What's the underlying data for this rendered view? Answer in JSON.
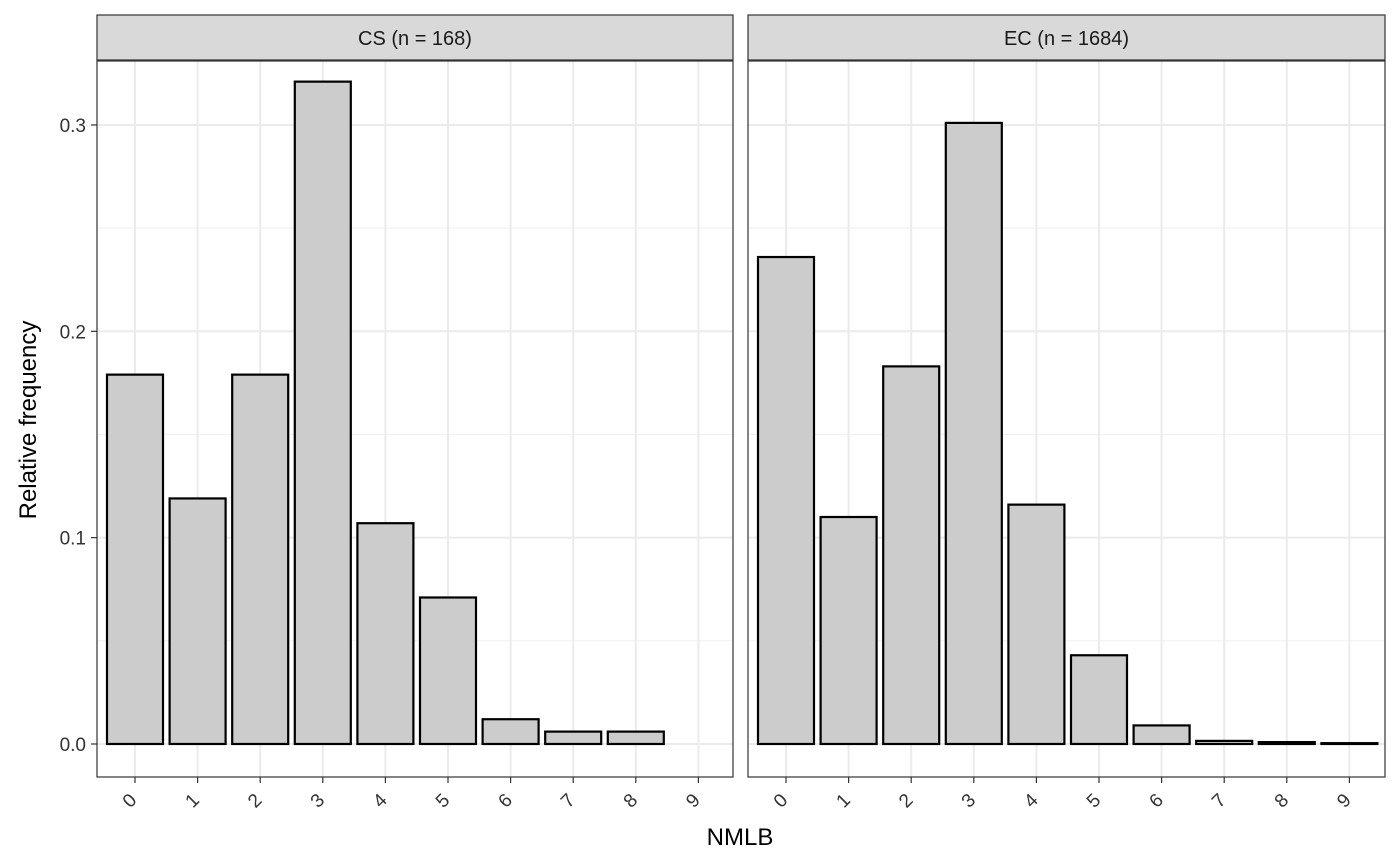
{
  "chart_data": {
    "type": "bar",
    "xlabel": "NMLB",
    "ylabel": "Relative frequency",
    "categories": [
      "0",
      "1",
      "2",
      "3",
      "4",
      "5",
      "6",
      "7",
      "8",
      "9"
    ],
    "ylim": [
      -0.016,
      0.331
    ],
    "yticks": [
      "0.0",
      "0.1",
      "0.2",
      "0.3"
    ],
    "grid": true,
    "bar_fill": "#cccccc",
    "bar_stroke": "#000000",
    "facets": [
      {
        "label": "CS (n = 168)",
        "values": [
          0.179,
          0.119,
          0.179,
          0.321,
          0.107,
          0.071,
          0.012,
          0.006,
          0.006,
          0.0
        ]
      },
      {
        "label": "EC (n = 1684)",
        "values": [
          0.236,
          0.11,
          0.183,
          0.301,
          0.116,
          0.043,
          0.009,
          0.0015,
          0.0009,
          0.0004
        ]
      }
    ]
  }
}
